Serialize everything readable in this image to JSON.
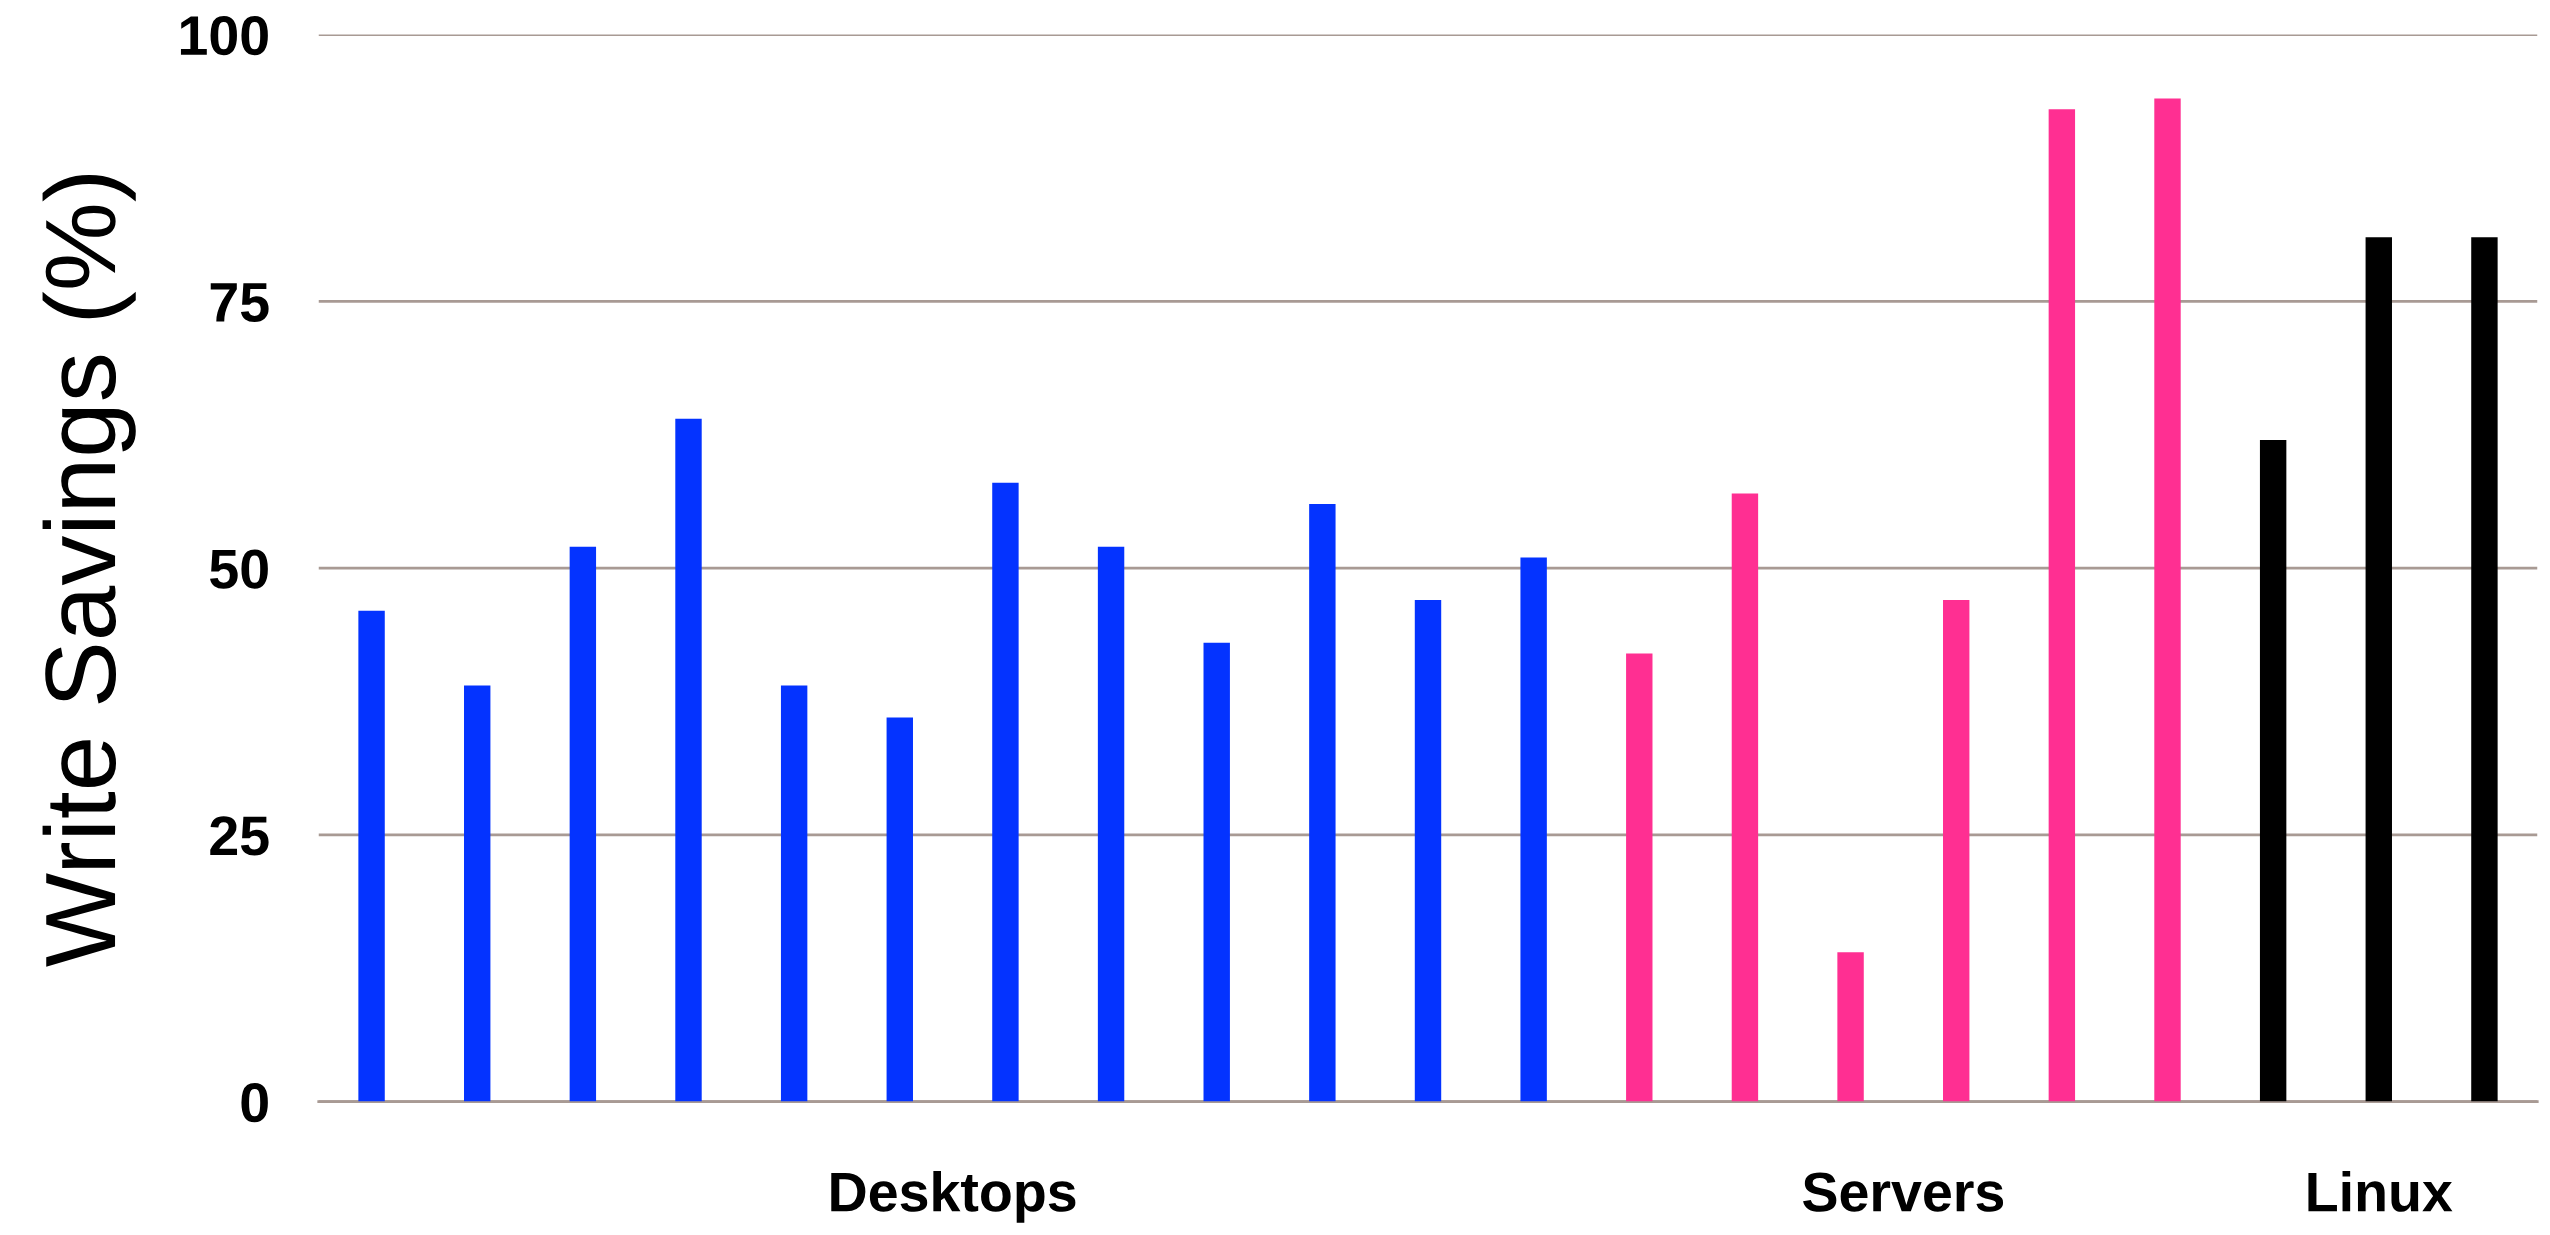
{
  "chart_data": {
    "type": "bar",
    "ylabel": "Write Savings (%)",
    "categories": [
      null,
      null,
      null,
      null,
      null,
      null,
      null,
      null,
      null,
      null,
      null,
      null,
      null,
      null,
      null,
      null,
      null,
      null,
      null,
      null,
      null
    ],
    "series": [
      {
        "name": "Desktops",
        "color": "#0433ff",
        "values": [
          46,
          39,
          52,
          64,
          39,
          36,
          58,
          52,
          43,
          56,
          47,
          51,
          null,
          null,
          null,
          null,
          null,
          null,
          null,
          null,
          null
        ]
      },
      {
        "name": "Servers",
        "color": "#ff2f92",
        "values": [
          null,
          null,
          null,
          null,
          null,
          null,
          null,
          null,
          null,
          null,
          null,
          null,
          42,
          57,
          14,
          47,
          93,
          94,
          null,
          null,
          null
        ]
      },
      {
        "name": "Linux",
        "color": "#000000",
        "values": [
          null,
          null,
          null,
          null,
          null,
          null,
          null,
          null,
          null,
          null,
          null,
          null,
          null,
          null,
          null,
          null,
          null,
          null,
          62,
          81,
          81
        ]
      }
    ],
    "ylim": [
      0,
      100
    ],
    "yticks": [
      0,
      25,
      50,
      75,
      100
    ],
    "grid": "y",
    "legend": false
  }
}
